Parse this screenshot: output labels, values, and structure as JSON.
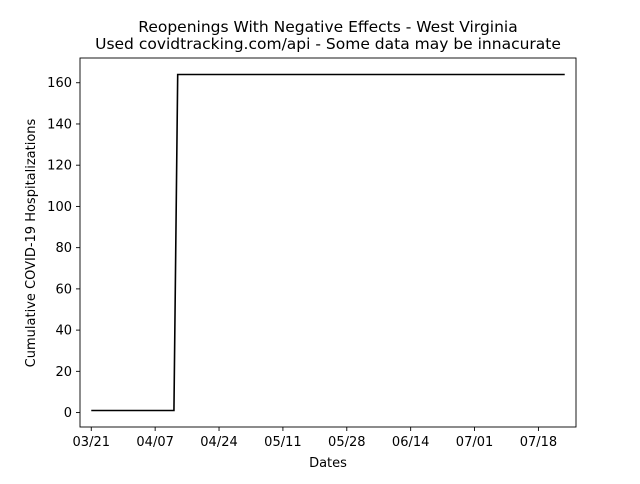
{
  "chart_data": {
    "type": "line",
    "title": "Reopenings With Negative Effects - West Virginia",
    "subtitle": "Used covidtracking.com/api - Some data may be innacurate",
    "xlabel": "Dates",
    "ylabel": "Cumulative COVID-19 Hospitalizations",
    "x_tick_labels": [
      "03/21",
      "04/07",
      "04/24",
      "05/11",
      "05/28",
      "06/14",
      "07/01",
      "07/18"
    ],
    "x_tick_dates": [
      "2020-03-21",
      "2020-04-07",
      "2020-04-24",
      "2020-05-11",
      "2020-05-28",
      "2020-06-14",
      "2020-07-01",
      "2020-07-18"
    ],
    "xlim": [
      "2020-03-18",
      "2020-07-28"
    ],
    "y_ticks": [
      0,
      20,
      40,
      60,
      80,
      100,
      120,
      140,
      160
    ],
    "ylim": [
      -7,
      172
    ],
    "grid": false,
    "series": [
      {
        "color": "#000000",
        "points": [
          {
            "x": "2020-03-21",
            "y": 1
          },
          {
            "x": "2020-04-12",
            "y": 1
          },
          {
            "x": "2020-04-13",
            "y": 164
          },
          {
            "x": "2020-07-25",
            "y": 164
          }
        ]
      }
    ]
  }
}
